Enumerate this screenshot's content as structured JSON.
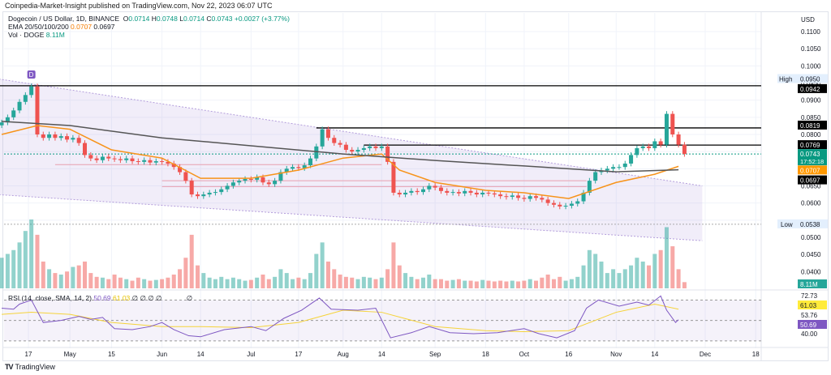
{
  "publisher_line": "Coinpedia-Market-Insight published on TradingView.com, Nov 22, 2023 06:07 UTC",
  "legend": {
    "symbol": "Dogecoin / US Dollar, 1D, BINANCE",
    "o_label": "O",
    "o": "0.0714",
    "h_label": "H",
    "h": "0.0748",
    "l_label": "L",
    "l": "0.0714",
    "c_label": "C",
    "c": "0.0743",
    "change": "+0.0027 (+3.77%)",
    "ema_label": "EMA 20/50/100/200",
    "ema1": "0.0707",
    "ema2": "0.0697",
    "vol_label": "Vol · DOGE",
    "vol": "8.11M",
    "rsi_label": "RSI (14, close, SMA, 14, 2)",
    "rsi": "50.69",
    "rsi_ma": "61.03",
    "rsi_extra": "∅ ∅ ∅ ∅",
    "rsi_extra2": "∅"
  },
  "footer": {
    "brand": "TradingView",
    "logo": "17"
  },
  "chart_data": {
    "type": "candlestick",
    "currency": "USD",
    "x_start": "2023-04-08",
    "x_step_days": 2,
    "closes": [
      0.0835,
      0.085,
      0.087,
      0.0895,
      0.0915,
      0.094,
      0.08,
      0.079,
      0.08,
      0.079,
      0.0795,
      0.0785,
      0.079,
      0.0775,
      0.074,
      0.073,
      0.0725,
      0.0735,
      0.073,
      0.0728,
      0.0725,
      0.073,
      0.0722,
      0.072,
      0.0725,
      0.0718,
      0.0722,
      0.072,
      0.0715,
      0.0705,
      0.069,
      0.0665,
      0.0625,
      0.062,
      0.0625,
      0.063,
      0.0632,
      0.064,
      0.065,
      0.066,
      0.0665,
      0.067,
      0.0668,
      0.0675,
      0.066,
      0.0655,
      0.0665,
      0.069,
      0.07,
      0.0705,
      0.0702,
      0.071,
      0.073,
      0.0765,
      0.0815,
      0.079,
      0.0775,
      0.077,
      0.0755,
      0.075,
      0.0755,
      0.076,
      0.0765,
      0.076,
      0.0765,
      0.072,
      0.063,
      0.0625,
      0.063,
      0.0635,
      0.0632,
      0.064,
      0.065,
      0.0645,
      0.0635,
      0.063,
      0.0632,
      0.0628,
      0.0635,
      0.063,
      0.0625,
      0.063,
      0.0628,
      0.0625,
      0.062,
      0.0618,
      0.0622,
      0.0615,
      0.0612,
      0.062,
      0.0615,
      0.061,
      0.06,
      0.0595,
      0.059,
      0.0592,
      0.0598,
      0.0605,
      0.063,
      0.0665,
      0.069,
      0.0695,
      0.07,
      0.0705,
      0.0705,
      0.0715,
      0.074,
      0.076,
      0.0765,
      0.076,
      0.078,
      0.077,
      0.086,
      0.08,
      0.077,
      0.0743
    ],
    "volume_m": [
      40,
      45,
      50,
      60,
      75,
      90,
      70,
      35,
      25,
      20,
      18,
      22,
      28,
      30,
      35,
      20,
      15,
      14,
      12,
      18,
      14,
      12,
      10,
      14,
      12,
      10,
      11,
      12,
      14,
      18,
      25,
      40,
      70,
      30,
      20,
      14,
      12,
      15,
      12,
      14,
      12,
      10,
      11,
      14,
      18,
      12,
      15,
      25,
      20,
      12,
      14,
      12,
      20,
      45,
      60,
      35,
      25,
      18,
      15,
      14,
      12,
      15,
      14,
      12,
      14,
      25,
      60,
      30,
      20,
      15,
      12,
      14,
      18,
      12,
      12,
      10,
      11,
      12,
      10,
      10,
      9,
      11,
      10,
      9,
      10,
      9,
      10,
      9,
      10,
      12,
      10,
      14,
      18,
      12,
      15,
      10,
      12,
      15,
      30,
      50,
      45,
      35,
      20,
      25,
      20,
      25,
      30,
      40,
      35,
      30,
      45,
      50,
      80,
      55,
      25,
      8.11
    ],
    "ema_orange": [
      [
        "2023-04-08",
        0.08
      ],
      [
        "2023-04-20",
        0.0826
      ],
      [
        "2023-05-01",
        0.0815
      ],
      [
        "2023-05-15",
        0.0755
      ],
      [
        "2023-06-01",
        0.0731
      ],
      [
        "2023-06-14",
        0.0672
      ],
      [
        "2023-07-01",
        0.0672
      ],
      [
        "2023-07-17",
        0.0696
      ],
      [
        "2023-08-01",
        0.0731
      ],
      [
        "2023-08-14",
        0.0743
      ],
      [
        "2023-08-20",
        0.0696
      ],
      [
        "2023-09-01",
        0.066
      ],
      [
        "2023-09-18",
        0.0637
      ],
      [
        "2023-10-01",
        0.063
      ],
      [
        "2023-10-16",
        0.0613
      ],
      [
        "2023-11-01",
        0.066
      ],
      [
        "2023-11-14",
        0.0684
      ],
      [
        "2023-11-22",
        0.0707
      ]
    ],
    "ema_gray": [
      [
        "2023-04-08",
        0.0838
      ],
      [
        "2023-05-01",
        0.0826
      ],
      [
        "2023-06-01",
        0.079
      ],
      [
        "2023-07-01",
        0.0767
      ],
      [
        "2023-08-01",
        0.0743
      ],
      [
        "2023-09-01",
        0.0724
      ],
      [
        "2023-10-01",
        0.0708
      ],
      [
        "2023-11-01",
        0.0691
      ],
      [
        "2023-11-22",
        0.0697
      ]
    ],
    "channel": {
      "upper": [
        [
          "2023-04-06",
          0.0963
        ],
        [
          "2023-11-30",
          0.065
        ]
      ],
      "lower": [
        [
          "2023-04-06",
          0.0625
        ],
        [
          "2023-11-30",
          0.049
        ]
      ]
    },
    "horizontal_levels": [
      {
        "from": "2023-04-06",
        "price": 0.0942
      },
      {
        "from": "2023-07-23",
        "price": 0.0819
      },
      {
        "from": "2023-08-08",
        "price": 0.0769
      }
    ],
    "pink_levels": [
      {
        "from": "2023-04-26",
        "to": "2023-08-14",
        "price": 0.0712
      },
      {
        "from": "2023-06-01",
        "to": "2023-10-22",
        "price": 0.0665
      },
      {
        "from": "2023-06-01",
        "to": "2023-10-22",
        "price": 0.0648
      }
    ],
    "rsi": [
      [
        "2023-04-08",
        62
      ],
      [
        "2023-04-12",
        61
      ],
      [
        "2023-04-14",
        66
      ],
      [
        "2023-04-18",
        70
      ],
      [
        "2023-04-22",
        48
      ],
      [
        "2023-04-28",
        50
      ],
      [
        "2023-05-04",
        54
      ],
      [
        "2023-05-08",
        51
      ],
      [
        "2023-05-12",
        53
      ],
      [
        "2023-05-16",
        42
      ],
      [
        "2023-05-22",
        41
      ],
      [
        "2023-05-28",
        44
      ],
      [
        "2023-06-01",
        48
      ],
      [
        "2023-06-05",
        41
      ],
      [
        "2023-06-10",
        35
      ],
      [
        "2023-06-14",
        34
      ],
      [
        "2023-06-22",
        41
      ],
      [
        "2023-07-01",
        44
      ],
      [
        "2023-07-06",
        40
      ],
      [
        "2023-07-12",
        52
      ],
      [
        "2023-07-18",
        60
      ],
      [
        "2023-07-24",
        72
      ],
      [
        "2023-07-28",
        61
      ],
      [
        "2023-08-06",
        60
      ],
      [
        "2023-08-12",
        62
      ],
      [
        "2023-08-17",
        33
      ],
      [
        "2023-08-24",
        38
      ],
      [
        "2023-08-30",
        44
      ],
      [
        "2023-09-06",
        38
      ],
      [
        "2023-09-14",
        37
      ],
      [
        "2023-09-22",
        38
      ],
      [
        "2023-10-01",
        42
      ],
      [
        "2023-10-06",
        37
      ],
      [
        "2023-10-12",
        33
      ],
      [
        "2023-10-18",
        40
      ],
      [
        "2023-10-22",
        62
      ],
      [
        "2023-10-26",
        70
      ],
      [
        "2023-11-02",
        64
      ],
      [
        "2023-11-08",
        68
      ],
      [
        "2023-11-12",
        65
      ],
      [
        "2023-11-16",
        74
      ],
      [
        "2023-11-18",
        60
      ],
      [
        "2023-11-21",
        48
      ],
      [
        "2023-11-22",
        50.69
      ]
    ],
    "rsi_ma": [
      [
        "2023-04-08",
        56
      ],
      [
        "2023-04-18",
        58
      ],
      [
        "2023-05-01",
        56
      ],
      [
        "2023-05-15",
        48
      ],
      [
        "2023-06-01",
        44
      ],
      [
        "2023-06-14",
        44
      ],
      [
        "2023-07-01",
        43
      ],
      [
        "2023-07-17",
        48
      ],
      [
        "2023-08-01",
        60
      ],
      [
        "2023-08-14",
        58
      ],
      [
        "2023-09-01",
        44
      ],
      [
        "2023-09-18",
        40
      ],
      [
        "2023-10-01",
        39
      ],
      [
        "2023-10-16",
        40
      ],
      [
        "2023-11-01",
        58
      ],
      [
        "2023-11-14",
        66
      ],
      [
        "2023-11-22",
        61.03
      ]
    ],
    "y_ticks": [
      "0.1100",
      "0.1050",
      "0.1000",
      "0.0950",
      "0.0900",
      "0.0850",
      "0.0800",
      "0.0650",
      "0.0600",
      "0.0500",
      "0.0450",
      "0.0400"
    ],
    "price_labels": [
      {
        "text": "0.0942",
        "bg": "#000000",
        "price": 0.0942
      },
      {
        "text": "0.0819",
        "bg": "#000000",
        "price": 0.0819
      },
      {
        "text": "0.0769",
        "bg": "#000000",
        "price": 0.0769
      },
      {
        "text": "0.0743",
        "sub": "17:52:18",
        "bg": "#089981",
        "price": 0.0743
      },
      {
        "text": "0.0707",
        "bg": "#ff9800",
        "price": 0.0707
      },
      {
        "text": "0.0697",
        "bg": "#000000",
        "price": 0.0697
      }
    ],
    "high_label": "High",
    "high": "0.0950",
    "low_label": "Low",
    "low": "0.0538",
    "vol_badge": "8.11M",
    "rsi_axis": [
      "72.73",
      "53.76",
      "40.00"
    ],
    "rsi_badges": [
      {
        "text": "61.03",
        "bg": "#ffeb3b"
      },
      {
        "text": "50.69",
        "bg": "#7e57c2"
      }
    ],
    "x_ticks": [
      [
        "2023-04-17",
        "17"
      ],
      [
        "2023-05-01",
        "May"
      ],
      [
        "2023-05-15",
        "15"
      ],
      [
        "2023-06-01",
        "Jun"
      ],
      [
        "2023-06-14",
        "14"
      ],
      [
        "2023-07-01",
        "Jul"
      ],
      [
        "2023-07-17",
        "17"
      ],
      [
        "2023-08-01",
        "Aug"
      ],
      [
        "2023-08-14",
        "14"
      ],
      [
        "2023-09-01",
        "Sep"
      ],
      [
        "2023-09-18",
        "18"
      ],
      [
        "2023-10-01",
        "Oct"
      ],
      [
        "2023-10-16",
        "16"
      ],
      [
        "2023-11-01",
        "Nov"
      ],
      [
        "2023-11-14",
        "14"
      ],
      [
        "2023-12-01",
        "Dec"
      ],
      [
        "2023-12-18",
        "18"
      ]
    ],
    "marker": "D",
    "colors": {
      "up": "#26a69a",
      "down": "#ef5350",
      "ema_orange": "#f7931a",
      "ema_gray": "#555555",
      "channel": "#b39ddb",
      "rsi": "#7e57c2",
      "rsi_ma": "#f5d33a"
    }
  }
}
